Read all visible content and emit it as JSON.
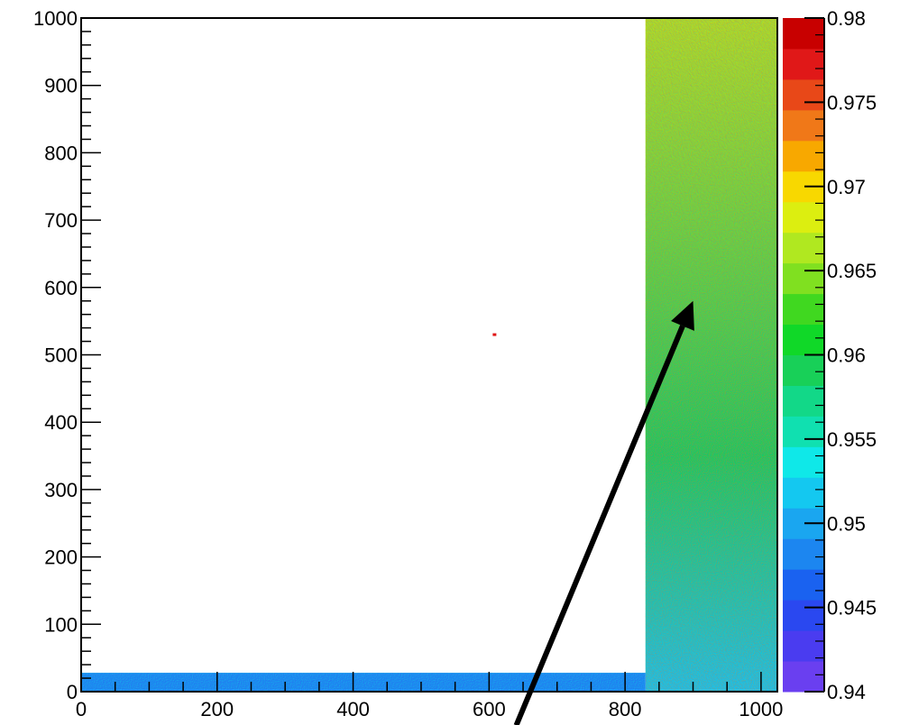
{
  "chart_data": {
    "type": "heatmap",
    "title": "",
    "xlabel": "",
    "ylabel": "",
    "xlim": [
      0,
      1024
    ],
    "ylim": [
      0,
      1000
    ],
    "x_ticks": [
      {
        "value": 0,
        "label": "0"
      },
      {
        "value": 200,
        "label": "200"
      },
      {
        "value": 400,
        "label": "400"
      },
      {
        "value": 600,
        "label": "600"
      },
      {
        "value": 800,
        "label": "800"
      },
      {
        "value": 1000,
        "label": "1000"
      }
    ],
    "y_ticks": [
      {
        "value": 0,
        "label": "0"
      },
      {
        "value": 100,
        "label": "100"
      },
      {
        "value": 200,
        "label": "200"
      },
      {
        "value": 300,
        "label": "300"
      },
      {
        "value": 400,
        "label": "400"
      },
      {
        "value": 500,
        "label": "500"
      },
      {
        "value": 600,
        "label": "600"
      },
      {
        "value": 700,
        "label": "700"
      },
      {
        "value": 800,
        "label": "800"
      },
      {
        "value": 900,
        "label": "900"
      },
      {
        "value": 1000,
        "label": "1000"
      }
    ],
    "colorbar": {
      "range": [
        0.94,
        0.98
      ],
      "ticks": [
        {
          "value": 0.94,
          "label": "0.94"
        },
        {
          "value": 0.945,
          "label": "0.945"
        },
        {
          "value": 0.95,
          "label": "0.95"
        },
        {
          "value": 0.955,
          "label": "0.955"
        },
        {
          "value": 0.96,
          "label": "0.96"
        },
        {
          "value": 0.965,
          "label": "0.965"
        },
        {
          "value": 0.97,
          "label": "0.97"
        },
        {
          "value": 0.975,
          "label": "0.975"
        },
        {
          "value": 0.98,
          "label": "0.98"
        }
      ],
      "colors": [
        "#6a3ff0",
        "#4a3cf0",
        "#2a48f0",
        "#1a62f0",
        "#1c86f0",
        "#1aa6f0",
        "#14c8f0",
        "#0fe8e8",
        "#10e0b0",
        "#12d888",
        "#18d058",
        "#10d828",
        "#40d820",
        "#80e020",
        "#b0e820",
        "#dcee10",
        "#f8d800",
        "#f8a800",
        "#f07818",
        "#e84818",
        "#e01818",
        "#c80000"
      ]
    },
    "regions": [
      {
        "name": "right-band",
        "x_range": [
          830,
          1024
        ],
        "y_range": [
          0,
          1000
        ],
        "value_bottom": 0.952,
        "value_top": 0.967
      },
      {
        "name": "bottom-strip",
        "x_range": [
          0,
          830
        ],
        "y_range": [
          0,
          28
        ],
        "value": 0.948
      },
      {
        "name": "isolated-point",
        "x": 608,
        "y": 530,
        "value": 0.977
      }
    ],
    "annotations": [
      {
        "type": "arrow",
        "from": [
          640,
          -50
        ],
        "to": [
          900,
          580
        ],
        "color": "#000000"
      }
    ],
    "grid": false
  }
}
